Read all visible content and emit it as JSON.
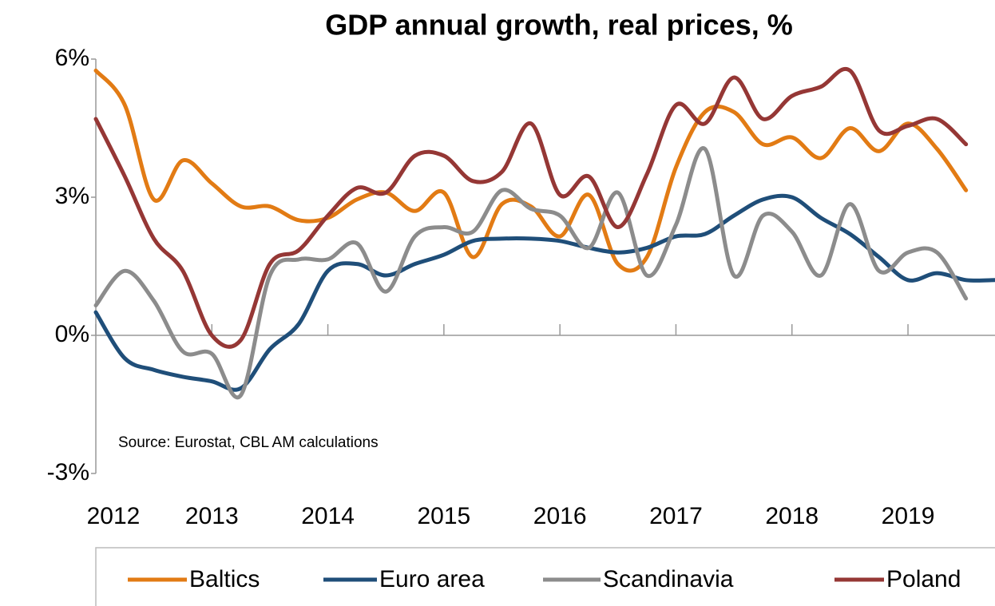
{
  "chart_data": {
    "type": "line",
    "title": "GDP annual growth, real prices, %",
    "annotation": "Source: Eurostat, CBL AM calculations",
    "x": [
      2012,
      2012.25,
      2012.5,
      2012.75,
      2013,
      2013.25,
      2013.5,
      2013.75,
      2014,
      2014.25,
      2014.5,
      2014.75,
      2015,
      2015.25,
      2015.5,
      2015.75,
      2016,
      2016.25,
      2016.5,
      2016.75,
      2017,
      2017.25,
      2017.5,
      2017.75,
      2018,
      2018.25,
      2018.5,
      2018.75,
      2019,
      2019.25,
      2019.5,
      2019.75
    ],
    "xlim": [
      2012,
      2019.75
    ],
    "xticks": [
      2012,
      2013,
      2014,
      2015,
      2016,
      2017,
      2018,
      2019
    ],
    "ylim": [
      -3,
      6
    ],
    "yticks": [
      {
        "value": -3,
        "label": "-3%"
      },
      {
        "value": 0,
        "label": "0%"
      },
      {
        "value": 3,
        "label": "3%"
      },
      {
        "value": 6,
        "label": "6%"
      }
    ],
    "grid": false,
    "legend": "bottom",
    "series": [
      {
        "name": "Baltics",
        "color": "#e27b14",
        "values": [
          5.75,
          5.0,
          2.95,
          3.8,
          3.3,
          2.8,
          2.8,
          2.5,
          2.55,
          2.95,
          3.1,
          2.7,
          3.1,
          1.7,
          2.85,
          2.8,
          2.15,
          3.05,
          1.55,
          1.7,
          3.65,
          4.85,
          4.85,
          4.15,
          4.3,
          3.85,
          4.5,
          4.0,
          4.6,
          4.05,
          3.15,
          null
        ]
      },
      {
        "name": "Euro area",
        "color": "#1f4e79",
        "values": [
          0.5,
          -0.5,
          -0.75,
          -0.9,
          -1.0,
          -1.15,
          -0.3,
          0.25,
          1.4,
          1.55,
          1.3,
          1.55,
          1.75,
          2.05,
          2.1,
          2.1,
          2.05,
          1.9,
          1.8,
          1.9,
          2.15,
          2.2,
          2.6,
          2.95,
          3.0,
          2.55,
          2.2,
          1.7,
          1.2,
          1.35,
          1.2,
          1.2
        ]
      },
      {
        "name": "Scandinavia",
        "color": "#8c8c8c",
        "values": [
          0.65,
          1.4,
          0.75,
          -0.35,
          -0.4,
          -1.3,
          1.3,
          1.65,
          1.65,
          2.0,
          0.95,
          2.15,
          2.35,
          2.25,
          3.15,
          2.75,
          2.6,
          1.9,
          3.1,
          1.3,
          2.4,
          4.05,
          1.3,
          2.6,
          2.25,
          1.3,
          2.85,
          1.4,
          1.8,
          1.8,
          0.8,
          null
        ]
      },
      {
        "name": "Poland",
        "color": "#953735",
        "values": [
          4.7,
          3.45,
          2.1,
          1.4,
          0.0,
          -0.1,
          1.55,
          1.85,
          2.6,
          3.2,
          3.1,
          3.9,
          3.9,
          3.35,
          3.55,
          4.6,
          3.05,
          3.45,
          2.35,
          3.5,
          5.0,
          4.6,
          5.6,
          4.7,
          5.2,
          5.4,
          5.75,
          4.45,
          4.55,
          4.7,
          4.15,
          null
        ]
      }
    ]
  }
}
